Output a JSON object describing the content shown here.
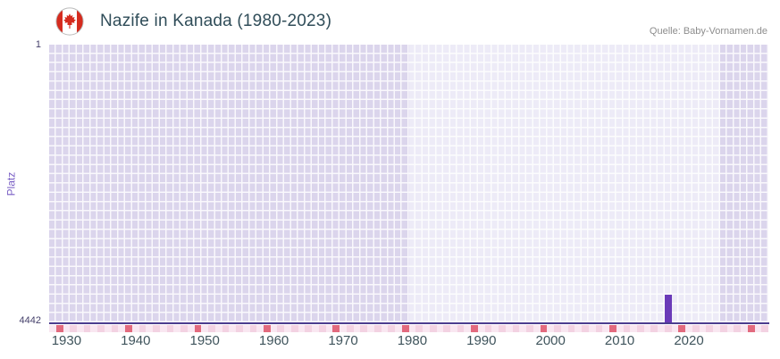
{
  "header": {
    "title": "Nazife in Kanada (1980-2023)",
    "source": "Quelle: Baby-Vornamen.de"
  },
  "chart_data": {
    "type": "bar",
    "title": "Nazife in Kanada (1980-2023)",
    "ylabel": "Platz",
    "y_axis": {
      "top_label": "1",
      "bottom_label": "4442",
      "min": 1,
      "max": 4442,
      "inverted": true
    },
    "x_axis": {
      "start_year": 1928,
      "end_year": 2032,
      "tick_years": [
        1930,
        1940,
        1950,
        1960,
        1970,
        1980,
        1990,
        2000,
        2010,
        2020
      ]
    },
    "data_range": {
      "start_year": 1980,
      "end_year": 2024
    },
    "series": [
      {
        "name": "Platz",
        "points": [
          {
            "year": 2017,
            "rank": 4000
          }
        ]
      }
    ],
    "strip": {
      "dark_years": [
        1929,
        1939,
        1949,
        1959,
        1969,
        1979,
        1989,
        1999,
        2009,
        2019,
        2029
      ]
    },
    "grid": true,
    "legend": false,
    "colors": {
      "bar": "#6a3ab8",
      "plot_bg_in_range": "#edebf7",
      "plot_bg_out_range": "#dbd5ec",
      "grid_line": "#ffffff",
      "axis_line": "#4c3d8f",
      "strip_light_a": "#f9e7f1",
      "strip_light_b": "#f3d2e2",
      "strip_dark": "#e26a7e",
      "title": "#304d59",
      "tick": "#3f545c",
      "y_tick": "#45406b",
      "ylabel": "#7a5fc5",
      "source": "#8d8d8d",
      "flag_red": "#d52b1e"
    }
  }
}
